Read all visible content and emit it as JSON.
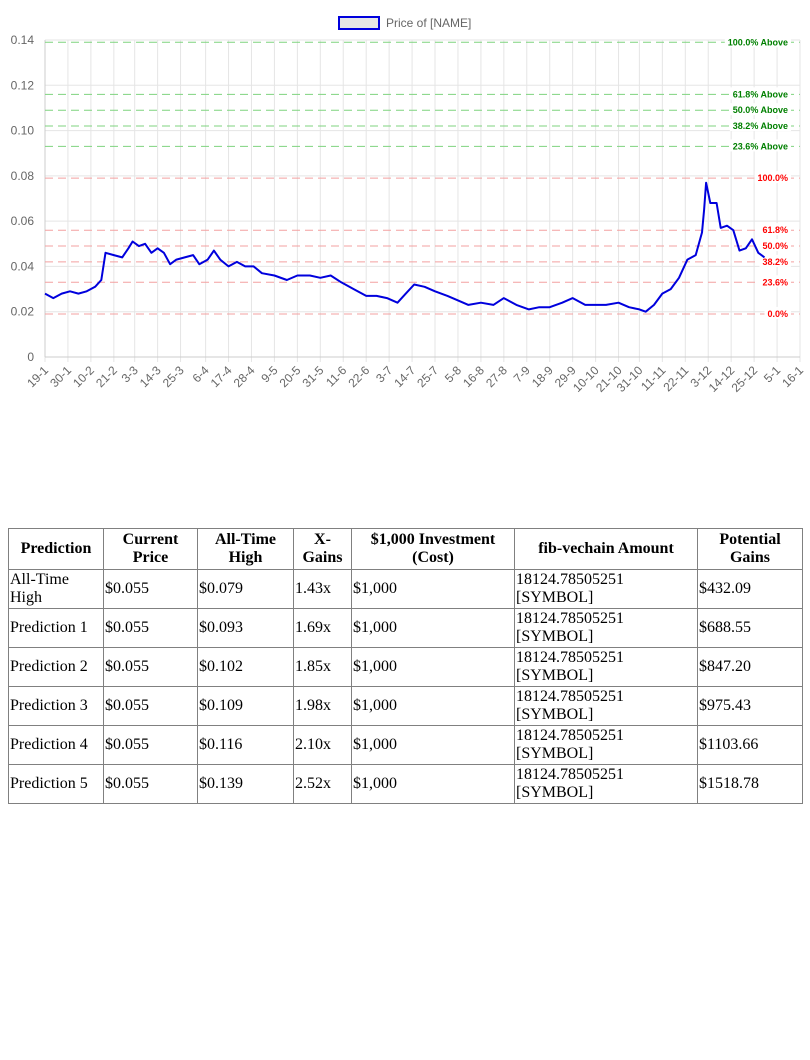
{
  "chart_data": {
    "type": "line",
    "legend": {
      "label": "Price of [NAME]",
      "position": "top"
    },
    "series_color": "#0000dd",
    "ylim": [
      0,
      0.14
    ],
    "y_ticks": [
      "0",
      "0.02",
      "0.04",
      "0.06",
      "0.08",
      "0.10",
      "0.12",
      "0.14"
    ],
    "x_tick_labels": [
      "19-1",
      "30-1",
      "10-2",
      "21-2",
      "3-3",
      "14-3",
      "25-3",
      "6-4",
      "17-4",
      "28-4",
      "9-5",
      "20-5",
      "31-5",
      "11-6",
      "22-6",
      "3-7",
      "14-7",
      "25-7",
      "5-8",
      "16-8",
      "27-8",
      "7-9",
      "18-9",
      "29-9",
      "10-10",
      "21-10",
      "31-10",
      "11-11",
      "22-11",
      "3-12",
      "14-12",
      "25-12",
      "5-1",
      "16-1"
    ],
    "grid": true,
    "fib_levels_above": [
      {
        "label": "100.0% Above",
        "value": 0.139,
        "color": "#008000"
      },
      {
        "label": "61.8% Above",
        "value": 0.116,
        "color": "#008000"
      },
      {
        "label": "50.0% Above",
        "value": 0.109,
        "color": "#008000"
      },
      {
        "label": "38.2% Above",
        "value": 0.102,
        "color": "#008000"
      },
      {
        "label": "23.6% Above",
        "value": 0.093,
        "color": "#008000"
      }
    ],
    "fib_levels": [
      {
        "label": "100.0%",
        "value": 0.079,
        "color": "#ff0000"
      },
      {
        "label": "61.8%",
        "value": 0.056,
        "color": "#ff0000"
      },
      {
        "label": "50.0%",
        "value": 0.049,
        "color": "#ff0000"
      },
      {
        "label": "38.2%",
        "value": 0.042,
        "color": "#ff0000"
      },
      {
        "label": "23.6%",
        "value": 0.033,
        "color": "#ff0000"
      },
      {
        "label": "0.0%",
        "value": 0.019,
        "color": "#ff0000"
      }
    ],
    "series": [
      {
        "name": "Price of [NAME]",
        "points": [
          [
            "19-1",
            0.028
          ],
          [
            "23-1",
            0.026
          ],
          [
            "27-1",
            0.028
          ],
          [
            "31-1",
            0.029
          ],
          [
            "4-2",
            0.028
          ],
          [
            "8-2",
            0.029
          ],
          [
            "12-2",
            0.031
          ],
          [
            "15-2",
            0.034
          ],
          [
            "17-2",
            0.046
          ],
          [
            "21-2",
            0.045
          ],
          [
            "25-2",
            0.044
          ],
          [
            "28-2",
            0.048
          ],
          [
            "2-3",
            0.051
          ],
          [
            "5-3",
            0.049
          ],
          [
            "8-3",
            0.05
          ],
          [
            "11-3",
            0.046
          ],
          [
            "14-3",
            0.048
          ],
          [
            "17-3",
            0.046
          ],
          [
            "20-3",
            0.041
          ],
          [
            "23-3",
            0.043
          ],
          [
            "27-3",
            0.044
          ],
          [
            "31-3",
            0.045
          ],
          [
            "3-4",
            0.041
          ],
          [
            "7-4",
            0.043
          ],
          [
            "10-4",
            0.047
          ],
          [
            "13-4",
            0.043
          ],
          [
            "17-4",
            0.04
          ],
          [
            "21-4",
            0.042
          ],
          [
            "25-4",
            0.04
          ],
          [
            "29-4",
            0.04
          ],
          [
            "3-5",
            0.037
          ],
          [
            "9-5",
            0.036
          ],
          [
            "15-5",
            0.034
          ],
          [
            "20-5",
            0.036
          ],
          [
            "26-5",
            0.036
          ],
          [
            "31-5",
            0.035
          ],
          [
            "5-6",
            0.036
          ],
          [
            "10-6",
            0.033
          ],
          [
            "16-6",
            0.03
          ],
          [
            "22-6",
            0.027
          ],
          [
            "27-6",
            0.027
          ],
          [
            "2-7",
            0.026
          ],
          [
            "7-7",
            0.024
          ],
          [
            "11-7",
            0.028
          ],
          [
            "15-7",
            0.032
          ],
          [
            "20-7",
            0.031
          ],
          [
            "25-7",
            0.029
          ],
          [
            "31-7",
            0.027
          ],
          [
            "5-8",
            0.025
          ],
          [
            "10-8",
            0.023
          ],
          [
            "16-8",
            0.024
          ],
          [
            "22-8",
            0.023
          ],
          [
            "27-8",
            0.026
          ],
          [
            "2-9",
            0.023
          ],
          [
            "8-9",
            0.021
          ],
          [
            "13-9",
            0.022
          ],
          [
            "18-9",
            0.022
          ],
          [
            "24-9",
            0.024
          ],
          [
            "29-9",
            0.026
          ],
          [
            "5-10",
            0.023
          ],
          [
            "10-10",
            0.023
          ],
          [
            "15-10",
            0.023
          ],
          [
            "21-10",
            0.024
          ],
          [
            "26-10",
            0.022
          ],
          [
            "31-10",
            0.021
          ],
          [
            "3-11",
            0.02
          ],
          [
            "7-11",
            0.023
          ],
          [
            "11-11",
            0.028
          ],
          [
            "15-11",
            0.03
          ],
          [
            "19-11",
            0.035
          ],
          [
            "23-11",
            0.043
          ],
          [
            "27-11",
            0.045
          ],
          [
            "30-11",
            0.055
          ],
          [
            "1-12",
            0.065
          ],
          [
            "2-12",
            0.077
          ],
          [
            "4-12",
            0.068
          ],
          [
            "7-12",
            0.068
          ],
          [
            "9-12",
            0.057
          ],
          [
            "12-12",
            0.058
          ],
          [
            "15-12",
            0.056
          ],
          [
            "18-12",
            0.047
          ],
          [
            "21-12",
            0.048
          ],
          [
            "24-12",
            0.052
          ],
          [
            "27-12",
            0.046
          ],
          [
            "30-12",
            0.044
          ]
        ]
      }
    ]
  },
  "table": {
    "headers": [
      "Prediction",
      "Current Price",
      "All-Time High",
      "X-Gains",
      "$1,000 Investment (Cost)",
      "fib-vechain Amount",
      "Potential Gains"
    ],
    "rows": [
      [
        "All-Time High",
        "$0.055",
        "$0.079",
        "1.43x",
        "$1,000",
        "18124.78505251 [SYMBOL]",
        "$432.09"
      ],
      [
        "Prediction 1",
        "$0.055",
        "$0.093",
        "1.69x",
        "$1,000",
        "18124.78505251 [SYMBOL]",
        "$688.55"
      ],
      [
        "Prediction 2",
        "$0.055",
        "$0.102",
        "1.85x",
        "$1,000",
        "18124.78505251 [SYMBOL]",
        "$847.20"
      ],
      [
        "Prediction 3",
        "$0.055",
        "$0.109",
        "1.98x",
        "$1,000",
        "18124.78505251 [SYMBOL]",
        "$975.43"
      ],
      [
        "Prediction 4",
        "$0.055",
        "$0.116",
        "2.10x",
        "$1,000",
        "18124.78505251 [SYMBOL]",
        "$1103.66"
      ],
      [
        "Prediction 5",
        "$0.055",
        "$0.139",
        "2.52x",
        "$1,000",
        "18124.78505251 [SYMBOL]",
        "$1518.78"
      ]
    ]
  }
}
